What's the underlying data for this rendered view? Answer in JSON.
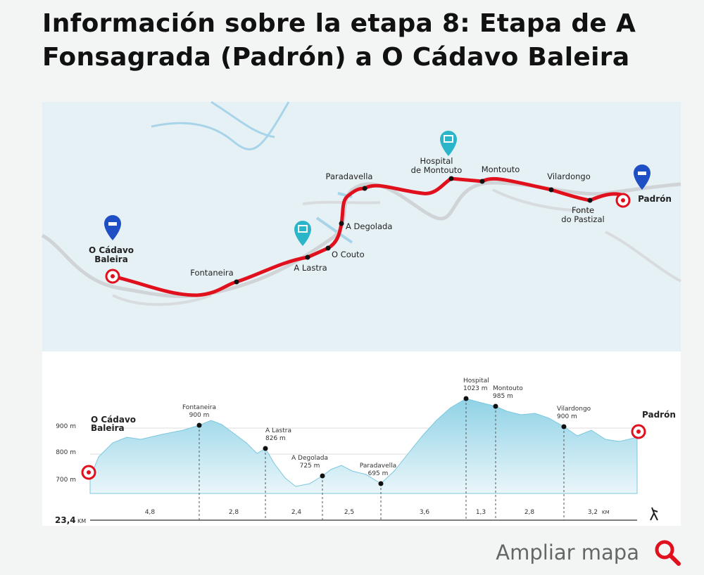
{
  "header": {
    "title_lines": [
      "Información sobre la etapa 8: Etapa de A",
      "Fonsagrada (Padrón) a O Cádavo Baleira"
    ]
  },
  "map": {
    "start": [
      "O Cádavo",
      "Baleira"
    ],
    "end": [
      "Padrón"
    ],
    "waypoints": [
      [
        "Fontaneira"
      ],
      [
        "A Lastra"
      ],
      [
        "O Couto"
      ],
      [
        "A Degolada"
      ],
      [
        "Paradavella"
      ],
      [
        "Hospital",
        "de Montouto"
      ],
      [
        "Montouto"
      ],
      [
        "Vilardongo"
      ],
      [
        "Fonte",
        "do Pastizal"
      ]
    ]
  },
  "profile": {
    "start": [
      "O Cádavo",
      "Baleira"
    ],
    "end": [
      "Padrón"
    ],
    "axis": [
      "900 m",
      "800 m",
      "700 m"
    ],
    "points": [
      {
        "name": "Fontaneira",
        "elevation": "900 m"
      },
      {
        "name": "A Lastra",
        "elevation": "826 m"
      },
      {
        "name": "A Degolada",
        "elevation": "725 m"
      },
      {
        "name": "Paradavella",
        "elevation": "695 m"
      },
      {
        "name": "Hospital",
        "elevation": "1023 m"
      },
      {
        "name": "Montouto",
        "elevation": "985 m"
      },
      {
        "name": "Vilardongo",
        "elevation": "900 m"
      }
    ],
    "segments": [
      "4,8",
      "2,8",
      "2,4",
      "2,5",
      "3,6",
      "1,3",
      "2,8",
      "3,2"
    ],
    "total": "23,4",
    "total_unit": "KM"
  },
  "footer": {
    "link": "Ampliar mapa"
  }
}
